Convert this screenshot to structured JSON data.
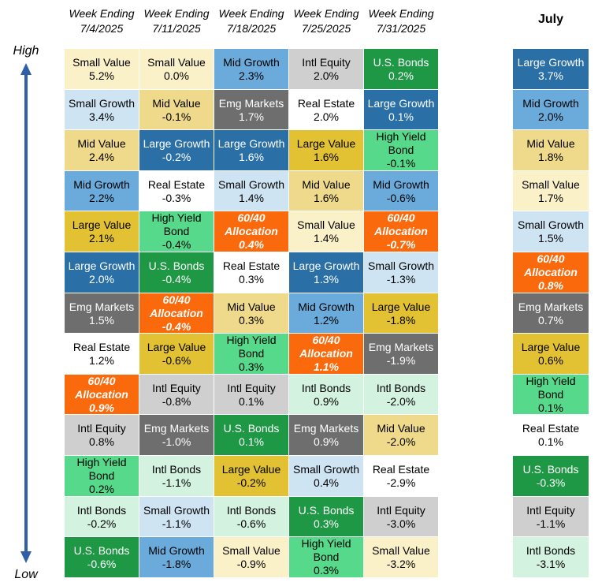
{
  "headers": [
    {
      "line1": "Week Ending",
      "line2": "7/4/2025"
    },
    {
      "line1": "Week Ending",
      "line2": "7/11/2025"
    },
    {
      "line1": "Week Ending",
      "line2": "7/18/2025"
    },
    {
      "line1": "Week Ending",
      "line2": "7/25/2025"
    },
    {
      "line1": "Week Ending",
      "line2": "7/31/2025"
    }
  ],
  "july_header": "July",
  "axis": {
    "high": "High",
    "low": "Low",
    "color": "#2e5fa8"
  },
  "colors": {
    "Small Value": {
      "bg": "#fbf1c9",
      "fg": "#000000"
    },
    "Small Growth": {
      "bg": "#cfe4f3",
      "fg": "#000000"
    },
    "Mid Value": {
      "bg": "#efd98a",
      "fg": "#000000"
    },
    "Mid Growth": {
      "bg": "#6aabdc",
      "fg": "#000000"
    },
    "Large Value": {
      "bg": "#e2c132",
      "fg": "#000000"
    },
    "Large Growth": {
      "bg": "#2a6fa5",
      "fg": "#ffffff"
    },
    "Emg Markets": {
      "bg": "#6e6e6e",
      "fg": "#ffffff"
    },
    "Real Estate": {
      "bg": "#ffffff",
      "fg": "#000000"
    },
    "60/40 Allocation": {
      "bg": "#fa6a0c",
      "fg": "#ffffff"
    },
    "Intl Equity": {
      "bg": "#cfcfcf",
      "fg": "#000000"
    },
    "High Yield Bond": {
      "bg": "#56d98a",
      "fg": "#000000"
    },
    "Intl Bonds": {
      "bg": "#d3f2df",
      "fg": "#000000"
    },
    "U.S. Bonds": {
      "bg": "#1e9845",
      "fg": "#ffffff"
    }
  },
  "chart_data": {
    "type": "table",
    "columns": [
      {
        "label": "Week Ending 7/4/2025",
        "ranks": [
          {
            "name": "Small Value",
            "value": "5.2%"
          },
          {
            "name": "Small Growth",
            "value": "3.4%"
          },
          {
            "name": "Mid Value",
            "value": "2.4%"
          },
          {
            "name": "Mid Growth",
            "value": "2.2%"
          },
          {
            "name": "Large Value",
            "value": "2.1%"
          },
          {
            "name": "Large Growth",
            "value": "2.0%"
          },
          {
            "name": "Emg Markets",
            "value": "1.5%"
          },
          {
            "name": "Real Estate",
            "value": "1.2%"
          },
          {
            "name": "60/40 Allocation",
            "value": "0.9%"
          },
          {
            "name": "Intl Equity",
            "value": "0.8%"
          },
          {
            "name": "High Yield Bond",
            "value": "0.2%"
          },
          {
            "name": "Intl Bonds",
            "value": "-0.2%"
          },
          {
            "name": "U.S. Bonds",
            "value": "-0.6%"
          }
        ]
      },
      {
        "label": "Week Ending 7/11/2025",
        "ranks": [
          {
            "name": "Small Value",
            "value": "0.0%"
          },
          {
            "name": "Mid Value",
            "value": "-0.1%"
          },
          {
            "name": "Large Growth",
            "value": "-0.2%"
          },
          {
            "name": "Real Estate",
            "value": "-0.3%"
          },
          {
            "name": "High Yield Bond",
            "value": "-0.4%"
          },
          {
            "name": "U.S. Bonds",
            "value": "-0.4%"
          },
          {
            "name": "60/40 Allocation",
            "value": "-0.4%"
          },
          {
            "name": "Large Value",
            "value": "-0.6%"
          },
          {
            "name": "Intl Equity",
            "value": "-0.8%"
          },
          {
            "name": "Emg Markets",
            "value": "-1.0%"
          },
          {
            "name": "Intl Bonds",
            "value": "-1.1%"
          },
          {
            "name": "Small Growth",
            "value": "-1.1%"
          },
          {
            "name": "Mid Growth",
            "value": "-1.8%"
          }
        ]
      },
      {
        "label": "Week Ending 7/18/2025",
        "ranks": [
          {
            "name": "Mid Growth",
            "value": "2.3%"
          },
          {
            "name": "Emg Markets",
            "value": "1.7%"
          },
          {
            "name": "Large Growth",
            "value": "1.6%"
          },
          {
            "name": "Small Growth",
            "value": "1.4%"
          },
          {
            "name": "60/40 Allocation",
            "value": "0.4%"
          },
          {
            "name": "Real Estate",
            "value": "0.3%"
          },
          {
            "name": "Mid Value",
            "value": "0.3%"
          },
          {
            "name": "High Yield Bond",
            "value": "0.3%"
          },
          {
            "name": "Intl Equity",
            "value": "0.1%"
          },
          {
            "name": "U.S. Bonds",
            "value": "0.1%"
          },
          {
            "name": "Large Value",
            "value": "-0.2%"
          },
          {
            "name": "Intl Bonds",
            "value": "-0.6%"
          },
          {
            "name": "Small Value",
            "value": "-0.9%"
          }
        ]
      },
      {
        "label": "Week Ending 7/25/2025",
        "ranks": [
          {
            "name": "Intl Equity",
            "value": "2.0%"
          },
          {
            "name": "Real Estate",
            "value": "2.0%"
          },
          {
            "name": "Large Value",
            "value": "1.6%"
          },
          {
            "name": "Mid Value",
            "value": "1.6%"
          },
          {
            "name": "Small Value",
            "value": "1.4%"
          },
          {
            "name": "Large Growth",
            "value": "1.3%"
          },
          {
            "name": "Mid Growth",
            "value": "1.2%"
          },
          {
            "name": "60/40 Allocation",
            "value": "1.1%"
          },
          {
            "name": "Intl Bonds",
            "value": "0.9%"
          },
          {
            "name": "Emg Markets",
            "value": "0.9%"
          },
          {
            "name": "Small Growth",
            "value": "0.4%"
          },
          {
            "name": "U.S. Bonds",
            "value": "0.3%"
          },
          {
            "name": "High Yield Bond",
            "value": "0.3%"
          }
        ]
      },
      {
        "label": "Week Ending 7/31/2025",
        "ranks": [
          {
            "name": "U.S. Bonds",
            "value": "0.2%"
          },
          {
            "name": "Large Growth",
            "value": "0.1%"
          },
          {
            "name": "High Yield Bond",
            "value": "-0.1%"
          },
          {
            "name": "Mid Growth",
            "value": "-0.6%"
          },
          {
            "name": "60/40 Allocation",
            "value": "-0.7%"
          },
          {
            "name": "Small Growth",
            "value": "-1.3%"
          },
          {
            "name": "Large Value",
            "value": "-1.8%"
          },
          {
            "name": "Emg Markets",
            "value": "-1.9%"
          },
          {
            "name": "Intl Bonds",
            "value": "-2.0%"
          },
          {
            "name": "Mid Value",
            "value": "-2.0%"
          },
          {
            "name": "Real Estate",
            "value": "-2.9%"
          },
          {
            "name": "Intl Equity",
            "value": "-3.0%"
          },
          {
            "name": "Small Value",
            "value": "-3.2%"
          }
        ]
      },
      {
        "label": "July",
        "ranks": [
          {
            "name": "Large Growth",
            "value": "3.7%"
          },
          {
            "name": "Mid Growth",
            "value": "2.0%"
          },
          {
            "name": "Mid Value",
            "value": "1.8%"
          },
          {
            "name": "Small Value",
            "value": "1.7%"
          },
          {
            "name": "Small Growth",
            "value": "1.5%"
          },
          {
            "name": "60/40 Allocation",
            "value": "0.8%"
          },
          {
            "name": "Emg Markets",
            "value": "0.7%"
          },
          {
            "name": "Large Value",
            "value": "0.6%"
          },
          {
            "name": "High Yield Bond",
            "value": "0.1%"
          },
          {
            "name": "Real Estate",
            "value": "0.1%"
          },
          {
            "name": "U.S. Bonds",
            "value": "-0.3%"
          },
          {
            "name": "Intl Equity",
            "value": "-1.1%"
          },
          {
            "name": "Intl Bonds",
            "value": "-3.1%"
          }
        ]
      }
    ]
  }
}
